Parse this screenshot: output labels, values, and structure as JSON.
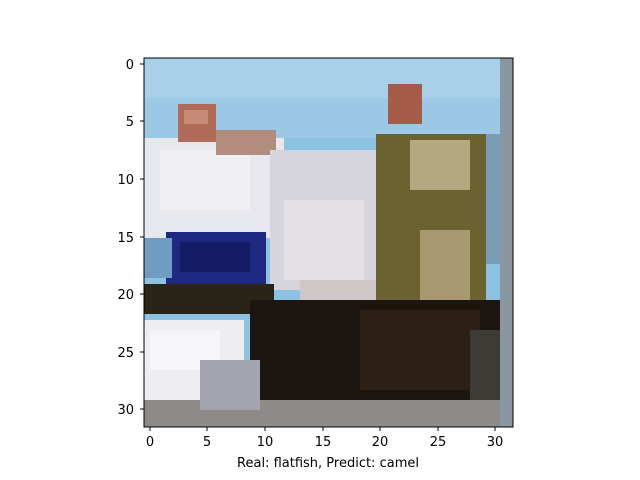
{
  "figure": {
    "caption": "Real: flatfish, Predict: camel",
    "image_alt": "Low-resolution 32x32 pixelated photo of people sitting on a boat deck"
  },
  "axes": {
    "x_ticks": [
      "0",
      "5",
      "10",
      "15",
      "20",
      "25",
      "30"
    ],
    "y_ticks": [
      "0",
      "5",
      "10",
      "15",
      "20",
      "25",
      "30"
    ],
    "x_range": [
      -0.5,
      31.5
    ],
    "y_range": [
      31.5,
      -0.5
    ],
    "pixel_grid": 32
  },
  "colors": {
    "sky": "#8cc2e2",
    "shirt_white": "#e6e8ee",
    "navy": "#1e2a82",
    "olive": "#6b6230",
    "dark": "#1c1510",
    "skin": "#b06a58"
  }
}
